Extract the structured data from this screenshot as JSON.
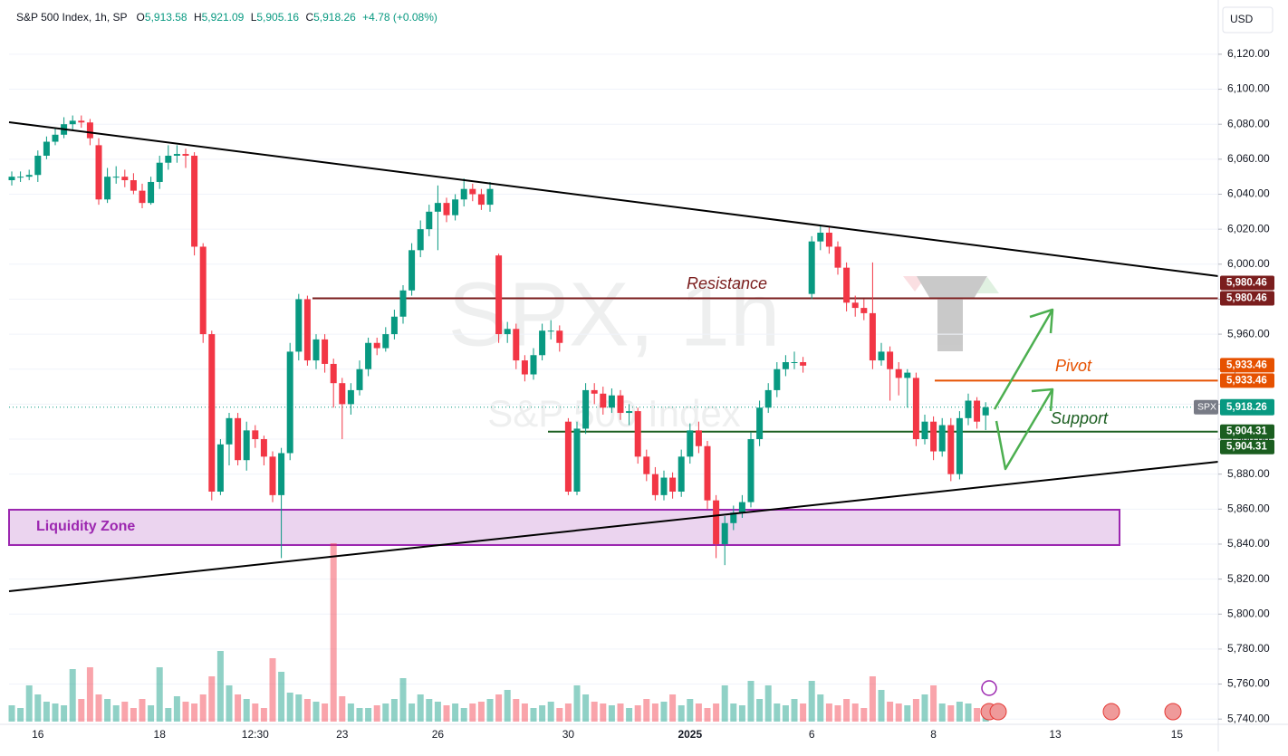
{
  "header": {
    "symbol": "S&P 500 Index, 1h, SP",
    "open": {
      "label": "O",
      "value": "5,913.58"
    },
    "high": {
      "label": "H",
      "value": "5,921.09"
    },
    "low": {
      "label": "L",
      "value": "5,905.16"
    },
    "close": {
      "label": "C",
      "value": "5,918.26"
    },
    "change": "+4.78 (+0.08%)",
    "currency": "USD"
  },
  "chart_data": {
    "type": "candlestick",
    "watermark": {
      "title": "SPX, 1h",
      "subtitle": "S&P 500 Index"
    },
    "up_color": "#089981",
    "down_color": "#f23645",
    "ylim": [
      5737,
      6151
    ],
    "yticks": [
      {
        "value": 5740,
        "label": "5,740.00"
      },
      {
        "value": 5760,
        "label": "5,760.00"
      },
      {
        "value": 5780,
        "label": "5,780.00"
      },
      {
        "value": 5800,
        "label": "5,800.00"
      },
      {
        "value": 5820,
        "label": "5,820.00"
      },
      {
        "value": 5840,
        "label": "5,840.00"
      },
      {
        "value": 5860,
        "label": "5,860.00"
      },
      {
        "value": 5880,
        "label": "5,880.00"
      },
      {
        "value": 5900,
        "label": "5,900.00"
      },
      {
        "value": 5920,
        "label": "5,920.00"
      },
      {
        "value": 5940,
        "label": "5,940.00"
      },
      {
        "value": 5960,
        "label": "5,960.00"
      },
      {
        "value": 5980,
        "label": "5,980.00"
      },
      {
        "value": 6000,
        "label": "6,000.00"
      },
      {
        "value": 6020,
        "label": "6,020.00"
      },
      {
        "value": 6040,
        "label": "6,040.00"
      },
      {
        "value": 6060,
        "label": "6,060.00"
      },
      {
        "value": 6080,
        "label": "6,080.00"
      },
      {
        "value": 6100,
        "label": "6,100.00"
      },
      {
        "value": 6120,
        "label": "6,120.00"
      }
    ],
    "categories": [
      null,
      null,
      null,
      "16",
      null,
      null,
      null,
      null,
      null,
      null,
      null,
      null,
      null,
      null,
      null,
      null,
      null,
      "18",
      null,
      null,
      null,
      null,
      null,
      null,
      null,
      null,
      null,
      null,
      "12:30",
      null,
      null,
      null,
      null,
      null,
      null,
      null,
      null,
      null,
      "23",
      null,
      null,
      null,
      null,
      null,
      null,
      null,
      null,
      null,
      null,
      "26",
      null,
      null,
      null,
      null,
      null,
      null,
      null,
      null,
      null,
      null,
      null,
      null,
      null,
      null,
      "30",
      null,
      null,
      null,
      null,
      null,
      null,
      null,
      null,
      null,
      null,
      null,
      null,
      null,
      "2025",
      null,
      null,
      null,
      null,
      null,
      null,
      null,
      null,
      null,
      null,
      null,
      null,
      null,
      "6",
      null,
      null,
      null,
      null,
      null,
      null,
      null,
      null,
      null,
      null,
      null,
      null,
      null,
      "8",
      null,
      null,
      null,
      null,
      null,
      null,
      null,
      null,
      null,
      null,
      null,
      null,
      null,
      "13",
      null,
      null,
      null,
      null,
      null,
      null,
      null,
      null,
      null,
      null,
      null,
      null,
      null,
      "15",
      null,
      null,
      null,
      null
    ],
    "ohlc": [
      [
        6048,
        6053,
        6045,
        6050
      ],
      [
        6050,
        6053,
        6047,
        6050
      ],
      [
        6050,
        6054,
        6048,
        6051
      ],
      [
        6051,
        6065,
        6047,
        6062
      ],
      [
        6062,
        6073,
        6060,
        6070
      ],
      [
        6070,
        6078,
        6068,
        6074
      ],
      [
        6074,
        6084,
        6072,
        6080
      ],
      [
        6080,
        6085,
        6077,
        6082
      ],
      [
        6082,
        6085,
        6078,
        6081
      ],
      [
        6081,
        6083,
        6068,
        6072
      ],
      [
        6068,
        6072,
        6034,
        6037
      ],
      [
        6037,
        6055,
        6035,
        6050
      ],
      [
        6050,
        6056,
        6046,
        6050
      ],
      [
        6050,
        6054,
        6044,
        6048
      ],
      [
        6048,
        6052,
        6040,
        6042
      ],
      [
        6042,
        6046,
        6032,
        6035
      ],
      [
        6035,
        6050,
        6034,
        6047
      ],
      [
        6047,
        6062,
        6043,
        6058
      ],
      [
        6058,
        6068,
        6054,
        6062
      ],
      [
        6062,
        6068,
        6058,
        6063
      ],
      [
        6063,
        6066,
        6055,
        6062
      ],
      [
        6062,
        6064,
        6005,
        6010
      ],
      [
        6010,
        6012,
        5955,
        5960
      ],
      [
        5960,
        5962,
        5865,
        5870
      ],
      [
        5870,
        5900,
        5868,
        5897
      ],
      [
        5897,
        5915,
        5885,
        5912
      ],
      [
        5912,
        5915,
        5885,
        5888
      ],
      [
        5888,
        5910,
        5882,
        5905
      ],
      [
        5905,
        5908,
        5895,
        5900
      ],
      [
        5900,
        5902,
        5885,
        5890
      ],
      [
        5890,
        5893,
        5864,
        5868
      ],
      [
        5868,
        5895,
        5832,
        5892
      ],
      [
        5892,
        5955,
        5888,
        5950
      ],
      [
        5950,
        5983,
        5945,
        5980
      ],
      [
        5980,
        5982,
        5942,
        5945
      ],
      [
        5945,
        5960,
        5940,
        5957
      ],
      [
        5957,
        5960,
        5938,
        5943
      ],
      [
        5943,
        5946,
        5918,
        5932
      ],
      [
        5932,
        5935,
        5900,
        5920
      ],
      [
        5920,
        5932,
        5914,
        5928
      ],
      [
        5928,
        5945,
        5925,
        5940
      ],
      [
        5940,
        5958,
        5936,
        5955
      ],
      [
        5955,
        5958,
        5948,
        5952
      ],
      [
        5952,
        5964,
        5950,
        5960
      ],
      [
        5960,
        5974,
        5957,
        5970
      ],
      [
        5970,
        5988,
        5966,
        5985
      ],
      [
        5985,
        6012,
        5982,
        6008
      ],
      [
        6008,
        6025,
        6004,
        6020
      ],
      [
        6020,
        6034,
        6016,
        6030
      ],
      [
        6030,
        6045,
        6008,
        6035
      ],
      [
        6035,
        6038,
        6024,
        6028
      ],
      [
        6028,
        6040,
        6025,
        6037
      ],
      [
        6037,
        6049,
        6033,
        6043
      ],
      [
        6043,
        6046,
        6036,
        6040
      ],
      [
        6040,
        6043,
        6031,
        6034
      ],
      [
        6034,
        6047,
        6030,
        6043
      ],
      [
        6005,
        6006,
        5955,
        5960
      ],
      [
        5960,
        5967,
        5955,
        5963
      ],
      [
        5963,
        5966,
        5940,
        5945
      ],
      [
        5945,
        5948,
        5933,
        5937
      ],
      [
        5937,
        5952,
        5934,
        5948
      ],
      [
        5948,
        5966,
        5945,
        5962
      ],
      [
        5962,
        5968,
        5957,
        5962
      ],
      [
        5962,
        5965,
        5950,
        5955
      ],
      [
        5910,
        5912,
        5868,
        5870
      ],
      [
        5870,
        5910,
        5868,
        5906
      ],
      [
        5906,
        5932,
        5903,
        5928
      ],
      [
        5928,
        5932,
        5920,
        5926
      ],
      [
        5926,
        5930,
        5914,
        5918
      ],
      [
        5918,
        5929,
        5915,
        5925
      ],
      [
        5925,
        5928,
        5911,
        5915
      ],
      [
        5915,
        5920,
        5908,
        5916
      ],
      [
        5916,
        5918,
        5886,
        5890
      ],
      [
        5890,
        5894,
        5876,
        5880
      ],
      [
        5880,
        5884,
        5865,
        5868
      ],
      [
        5868,
        5882,
        5865,
        5878
      ],
      [
        5878,
        5881,
        5866,
        5870
      ],
      [
        5870,
        5894,
        5867,
        5890
      ],
      [
        5890,
        5909,
        5886,
        5905
      ],
      [
        5905,
        5910,
        5892,
        5896
      ],
      [
        5896,
        5899,
        5860,
        5865
      ],
      [
        5865,
        5868,
        5832,
        5840
      ],
      [
        5840,
        5856,
        5828,
        5852
      ],
      [
        5852,
        5862,
        5848,
        5858
      ],
      [
        5858,
        5868,
        5855,
        5864
      ],
      [
        5864,
        5904,
        5861,
        5900
      ],
      [
        5900,
        5922,
        5896,
        5918
      ],
      [
        5918,
        5932,
        5915,
        5928
      ],
      [
        5928,
        5944,
        5924,
        5940
      ],
      [
        5940,
        5948,
        5936,
        5944
      ],
      [
        5944,
        5950,
        5940,
        5944
      ],
      [
        5944,
        5947,
        5938,
        5942
      ],
      [
        5983,
        6016,
        5980,
        6013
      ],
      [
        6013,
        6022,
        6008,
        6018
      ],
      [
        6018,
        6021,
        6006,
        6010
      ],
      [
        6010,
        6013,
        5994,
        5998
      ],
      [
        5998,
        6001,
        5973,
        5978
      ],
      [
        5978,
        5982,
        5970,
        5975
      ],
      [
        5975,
        5980,
        5968,
        5972
      ],
      [
        5972,
        6001,
        5940,
        5945
      ],
      [
        5945,
        5955,
        5942,
        5950
      ],
      [
        5950,
        5953,
        5922,
        5940
      ],
      [
        5940,
        5944,
        5925,
        5935
      ],
      [
        5935,
        5940,
        5918,
        5938
      ],
      [
        5935,
        5938,
        5896,
        5900
      ],
      [
        5900,
        5914,
        5897,
        5910
      ],
      [
        5910,
        5913,
        5888,
        5893
      ],
      [
        5893,
        5912,
        5890,
        5908
      ],
      [
        5908,
        5912,
        5876,
        5880
      ],
      [
        5880,
        5916,
        5877,
        5912
      ],
      [
        5912,
        5926,
        5908,
        5922
      ],
      [
        5922,
        5924,
        5906,
        5910
      ],
      [
        5913.58,
        5921.09,
        5905.16,
        5918.26
      ],
      null,
      null,
      null,
      null,
      null,
      null,
      null,
      null,
      null,
      null,
      null,
      null,
      null,
      null,
      null,
      null,
      null,
      null,
      null,
      null,
      null,
      null,
      null,
      null,
      null,
      null
    ],
    "volume": [
      18,
      15,
      40,
      30,
      22,
      20,
      18,
      58,
      25,
      60,
      30,
      25,
      18,
      22,
      15,
      25,
      18,
      60,
      15,
      28,
      22,
      20,
      30,
      50,
      78,
      40,
      30,
      25,
      20,
      15,
      70,
      55,
      32,
      30,
      25,
      22,
      20,
      197,
      28,
      20,
      15,
      15,
      18,
      20,
      25,
      48,
      20,
      30,
      25,
      22,
      18,
      20,
      15,
      20,
      22,
      25,
      30,
      35,
      25,
      20,
      15,
      18,
      22,
      15,
      20,
      40,
      30,
      22,
      20,
      18,
      20,
      15,
      18,
      25,
      20,
      22,
      30,
      18,
      25,
      20,
      15,
      20,
      40,
      20,
      18,
      45,
      25,
      40,
      20,
      18,
      25,
      20,
      45,
      30,
      20,
      18,
      25,
      20,
      15,
      50,
      35,
      22,
      20,
      18,
      25,
      30,
      40,
      20,
      18,
      22,
      20,
      15,
      12,
      null,
      null,
      null,
      null,
      null,
      null,
      null,
      null,
      null,
      null,
      null,
      null,
      null,
      null,
      null,
      null,
      null,
      null,
      null,
      null,
      null,
      null,
      null,
      null,
      null,
      null
    ],
    "levels": [
      {
        "name": "Resistance",
        "value": 5980.46,
        "label": "5,980.46",
        "color": "#7b1e1e"
      },
      {
        "name": "Pivot",
        "value": 5933.46,
        "label": "5,933.46",
        "color": "#e65100"
      },
      {
        "name": "Support",
        "value": 5904.31,
        "label": "5,904.31",
        "color": "#1b5e20"
      }
    ],
    "zone_label": "Liquidity Zone",
    "last_price": {
      "symbol": "SPX",
      "value": 5918.26,
      "label": "5,918.26"
    }
  }
}
